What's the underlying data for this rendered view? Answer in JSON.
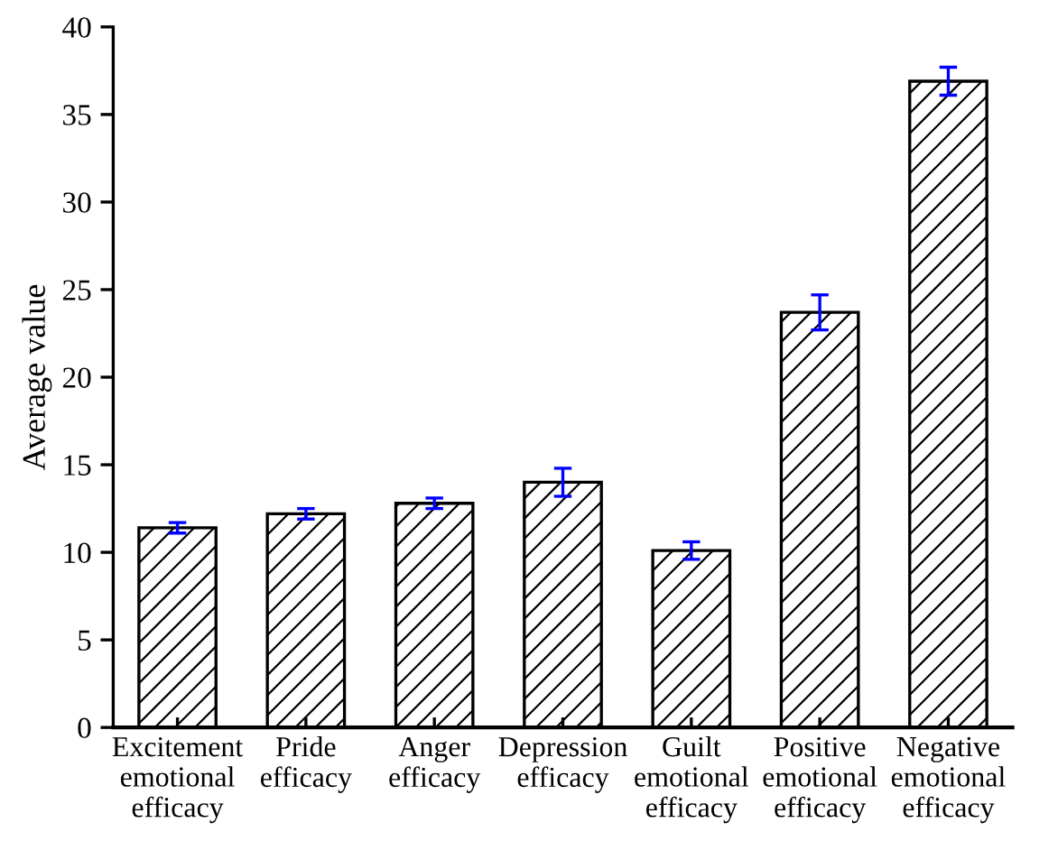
{
  "chart_data": {
    "type": "bar",
    "categories": [
      "Excitement emotional efficacy",
      "Pride efficacy",
      "Anger efficacy",
      "Depression efficacy",
      "Guilt emotional efficacy",
      "Positive emotional efficacy",
      "Negative emotional efficacy"
    ],
    "values": [
      11.4,
      12.2,
      12.8,
      14.0,
      10.1,
      23.7,
      36.9
    ],
    "errors": [
      0.3,
      0.3,
      0.3,
      0.8,
      0.5,
      1.0,
      0.8
    ],
    "color": "#000000",
    "ylabel": "Average value",
    "ylim": [
      0,
      40
    ],
    "yticks": [
      0,
      5,
      10,
      15,
      20,
      25,
      30,
      35,
      40
    ],
    "grid": false
  }
}
